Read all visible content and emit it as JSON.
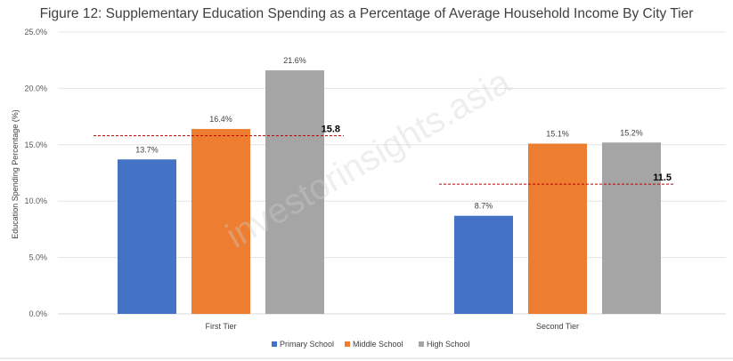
{
  "chart_data": {
    "type": "bar",
    "title": "Figure 12: Supplementary Education Spending as a Percentage of Average Household Income By City Tier",
    "ylabel": "Education Spending Percentage (%)",
    "xlabel": "",
    "categories": [
      "First Tier",
      "Second Tier"
    ],
    "series": [
      {
        "name": "Primary School",
        "values": [
          13.7,
          8.7
        ],
        "labels": [
          "13.7%",
          "8.7%"
        ],
        "color": "#4472c4"
      },
      {
        "name": "Middle School",
        "values": [
          16.4,
          15.1
        ],
        "labels": [
          "16.4%",
          "15.1%"
        ],
        "color": "#ed7d31"
      },
      {
        "name": "High School",
        "values": [
          21.6,
          15.2
        ],
        "labels": [
          "21.6%",
          "15.2%"
        ],
        "color": "#a5a5a5"
      }
    ],
    "averages": [
      {
        "category": "First Tier",
        "value": 15.8,
        "label": "15.8"
      },
      {
        "category": "Second Tier",
        "value": 11.5,
        "label": "11.5"
      }
    ],
    "average_line_color": "#c00000",
    "ylim": [
      0,
      25
    ],
    "yticks": [
      0,
      5,
      10,
      15,
      20,
      25
    ],
    "ytick_labels": [
      "0.0%",
      "5.0%",
      "10.0%",
      "15.0%",
      "20.0%",
      "25.0%"
    ],
    "grid": true,
    "legend_position": "bottom",
    "watermark": "investorinsights.asia"
  }
}
